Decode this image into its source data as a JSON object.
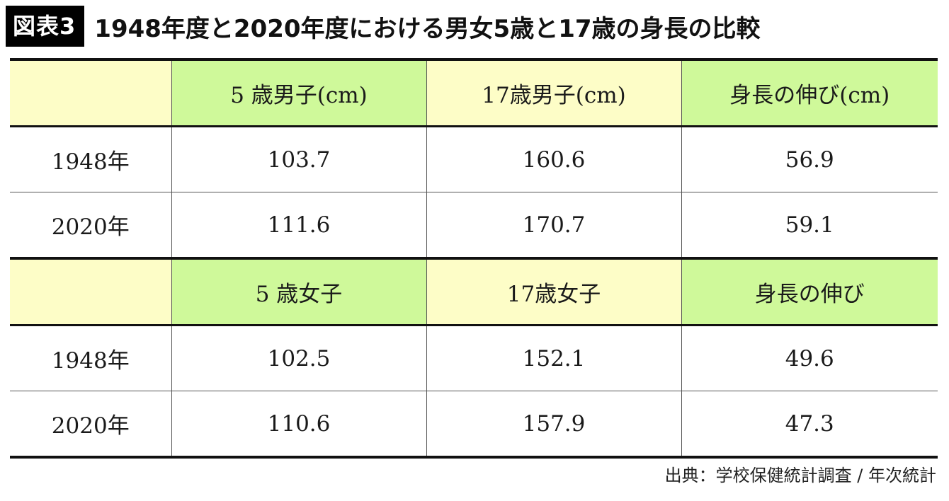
{
  "figure": {
    "badge": "図表3",
    "title": "1948年度と2020年度における男女5歳と17歳の身長の比較"
  },
  "colors": {
    "header_yellow": "#fdfdc7",
    "header_green": "#cff99a"
  },
  "chart_data": {
    "type": "table",
    "title": "1948年度と2020年度における男女5歳と17歳の身長の比較",
    "sections": [
      {
        "columns": [
          "",
          "5 歳男子(cm)",
          "17歳男子(cm)",
          "身長の伸び(cm)"
        ],
        "rows": [
          {
            "label": "1948年",
            "values": [
              "103.7",
              "160.6",
              "56.9"
            ]
          },
          {
            "label": "2020年",
            "values": [
              "111.6",
              "170.7",
              "59.1"
            ]
          }
        ]
      },
      {
        "columns": [
          "",
          "5 歳女子",
          "17歳女子",
          "身長の伸び"
        ],
        "rows": [
          {
            "label": "1948年",
            "values": [
              "102.5",
              "152.1",
              "49.6"
            ]
          },
          {
            "label": "2020年",
            "values": [
              "110.6",
              "157.9",
              "47.3"
            ]
          }
        ]
      }
    ]
  },
  "source": "出典：学校保健統計調査 / 年次統計"
}
